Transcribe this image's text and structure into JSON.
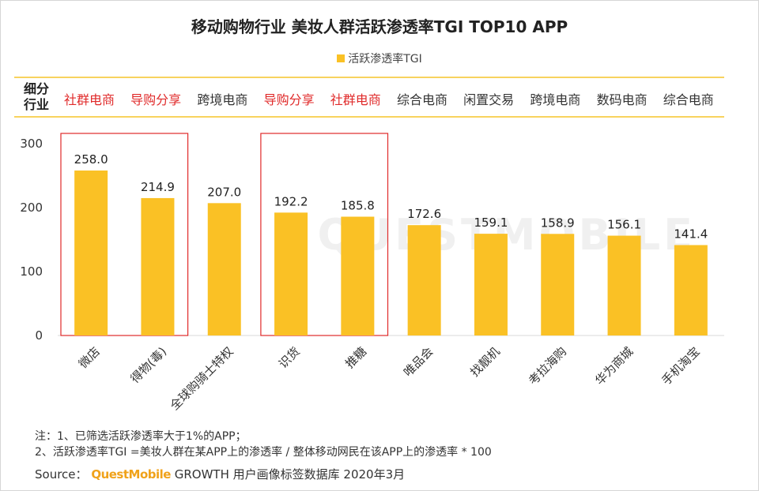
{
  "title": "移动购物行业 美妆人群活跃渗透率TGI TOP10 APP",
  "legend": "活跃渗透率TGI",
  "industry_header": "细分行业",
  "industry_header_lines": [
    "细分",
    "行业"
  ],
  "industries": [
    {
      "label": "社群电商",
      "highlight": true
    },
    {
      "label": "导购分享",
      "highlight": true
    },
    {
      "label": "跨境电商",
      "highlight": false
    },
    {
      "label": "导购分享",
      "highlight": true
    },
    {
      "label": "社群电商",
      "highlight": true
    },
    {
      "label": "综合电商",
      "highlight": false
    },
    {
      "label": "闲置交易",
      "highlight": false
    },
    {
      "label": "跨境电商",
      "highlight": false
    },
    {
      "label": "数码电商",
      "highlight": false
    },
    {
      "label": "综合电商",
      "highlight": false
    }
  ],
  "notes": {
    "line1": "注：1、已筛选活跃渗透率大于1%的APP；",
    "line2": "2、活跃渗透率TGI =美妆人群在某APP上的渗透率 / 整体移动网民在该APP上的渗透率 * 100"
  },
  "source": {
    "prefix": "Source：",
    "brand": "QuestMobile",
    "rest": "GROWTH 用户画像标签数据库 2020年3月"
  },
  "watermark": "QUESTMOBILE",
  "colors": {
    "bar": "#FAC125",
    "highlight_box": "#E02A2A",
    "row_border": "#F8D35E"
  },
  "chart_data": {
    "type": "bar",
    "categories": [
      "微店",
      "得物(毒)",
      "全球购骑士特权",
      "识货",
      "推糖",
      "唯品会",
      "找靓机",
      "考拉海购",
      "华为商城",
      "手机淘宝"
    ],
    "series": [
      {
        "name": "活跃渗透率TGI",
        "values": [
          258.0,
          214.9,
          207.0,
          192.2,
          185.8,
          172.6,
          159.1,
          158.9,
          156.1,
          141.4
        ]
      }
    ],
    "value_labels": [
      "258.0",
      "214.9",
      "207.0",
      "192.2",
      "185.8",
      "172.6",
      "159.1",
      "158.9",
      "156.1",
      "141.4"
    ],
    "ylim": [
      0,
      300
    ],
    "yticks": [
      "0",
      "100",
      "200",
      "300"
    ],
    "grid": false,
    "legend_position": "top-center",
    "highlight_groups": [
      [
        "微店",
        "得物(毒)"
      ],
      [
        "识货",
        "推糖"
      ]
    ]
  }
}
